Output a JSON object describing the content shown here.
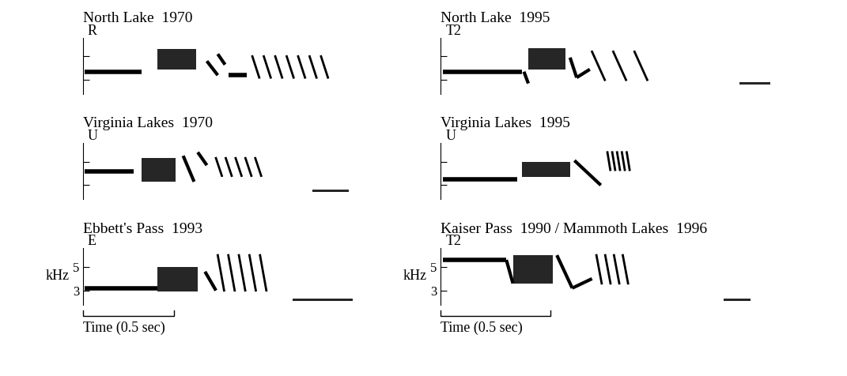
{
  "chart_data": [
    {
      "type": "spectrogram",
      "title": "North Lake  1970",
      "label": "R",
      "color": "#000000",
      "xlim": [
        0,
        1.6
      ],
      "ylim": [
        1.8,
        6.6
      ],
      "yticks": [
        3,
        5
      ],
      "tick_labels": false,
      "notes": [
        {
          "type": "whistle",
          "t": [
            0.01,
            0.32
          ],
          "f": 3.7
        },
        {
          "type": "buzz",
          "t": [
            0.41,
            0.62
          ],
          "f": [
            3.9,
            5.6
          ]
        },
        {
          "type": "sweep",
          "t": [
            0.68,
            0.74
          ],
          "f": [
            4.6,
            3.4
          ]
        },
        {
          "type": "sweep",
          "t": [
            0.74,
            0.78
          ],
          "f": [
            5.2,
            4.3
          ]
        },
        {
          "type": "whistle",
          "t": [
            0.8,
            0.9
          ],
          "f": 3.4
        },
        {
          "type": "trill",
          "t": [
            0.93,
            1.37
          ],
          "f": [
            5.0,
            3.2
          ],
          "n": 7
        }
      ]
    },
    {
      "type": "spectrogram",
      "title": "North Lake  1995",
      "label": "T2",
      "color": "#000000",
      "xlim": [
        0,
        1.6
      ],
      "ylim": [
        1.8,
        6.6
      ],
      "yticks": [
        3,
        5
      ],
      "tick_labels": false,
      "notes": [
        {
          "type": "whistle",
          "t": [
            0.01,
            0.37
          ],
          "f": 3.7
        },
        {
          "type": "sweep",
          "t": [
            0.38,
            0.4
          ],
          "f": [
            3.7,
            2.7
          ]
        },
        {
          "type": "buzz",
          "t": [
            0.4,
            0.57
          ],
          "f": [
            3.9,
            5.7
          ]
        },
        {
          "type": "sweep",
          "t": [
            0.59,
            0.62
          ],
          "f": [
            4.9,
            3.2
          ]
        },
        {
          "type": "sweep",
          "t": [
            0.62,
            0.68
          ],
          "f": [
            3.2,
            3.9
          ]
        },
        {
          "type": "trill",
          "t": [
            0.69,
            0.98
          ],
          "f": [
            5.4,
            3.0
          ],
          "n": 3
        },
        {
          "type": "buzz",
          "t": [
            1.36,
            1.5
          ],
          "f": [
            2.6,
            2.8
          ]
        }
      ]
    },
    {
      "type": "spectrogram",
      "title": "Virginia Lakes  1970",
      "label": "U",
      "color": "#000000",
      "xlim": [
        0,
        1.6
      ],
      "ylim": [
        1.8,
        6.6
      ],
      "yticks": [
        3,
        5
      ],
      "tick_labels": false,
      "notes": [
        {
          "type": "whistle",
          "t": [
            0.01,
            0.28
          ],
          "f": 4.2
        },
        {
          "type": "buzz",
          "t": [
            0.32,
            0.51
          ],
          "f": [
            3.3,
            5.3
          ]
        },
        {
          "type": "sweep",
          "t": [
            0.55,
            0.61
          ],
          "f": [
            5.5,
            3.3
          ]
        },
        {
          "type": "sweep",
          "t": [
            0.63,
            0.68
          ],
          "f": [
            5.8,
            4.7
          ]
        },
        {
          "type": "trill",
          "t": [
            0.73,
            1.0
          ],
          "f": [
            5.3,
            3.8
          ],
          "n": 5
        },
        {
          "type": "buzz",
          "t": [
            1.26,
            1.46
          ],
          "f": [
            2.4,
            2.6
          ]
        }
      ]
    },
    {
      "type": "spectrogram",
      "title": "Virginia Lakes  1995",
      "label": "U",
      "color": "#000000",
      "xlim": [
        0,
        1.6
      ],
      "ylim": [
        1.8,
        6.6
      ],
      "yticks": [
        3,
        5
      ],
      "tick_labels": false,
      "notes": [
        {
          "type": "whistle",
          "t": [
            0.01,
            0.35
          ],
          "f": 3.5
        },
        {
          "type": "buzz",
          "t": [
            0.37,
            0.59
          ],
          "f": [
            3.7,
            5.0
          ]
        },
        {
          "type": "sweep",
          "t": [
            0.61,
            0.73
          ],
          "f": [
            5.1,
            3.0
          ]
        },
        {
          "type": "trill",
          "t": [
            0.76,
            0.87
          ],
          "f": [
            5.8,
            4.3
          ],
          "n": 5
        }
      ]
    },
    {
      "type": "spectrogram",
      "title": "Ebbett's Pass  1993",
      "label": "E",
      "color": "#000000",
      "xlim": [
        0,
        1.6
      ],
      "ylim": [
        1.8,
        6.6
      ],
      "yticks": [
        3,
        5
      ],
      "tick_labels": "y",
      "ylabel": "kHz",
      "scale_bar": {
        "value": 0.5,
        "label": "Time (0.5 sec)"
      },
      "notes": [
        {
          "type": "whistle",
          "t": [
            0.01,
            0.41
          ],
          "f": 3.2
        },
        {
          "type": "buzz",
          "t": [
            0.41,
            0.63
          ],
          "f": [
            2.9,
            5.0
          ]
        },
        {
          "type": "sweep",
          "t": [
            0.67,
            0.73
          ],
          "f": [
            4.6,
            3.0
          ]
        },
        {
          "type": "trill",
          "t": [
            0.74,
            1.03
          ],
          "f": [
            6.0,
            3.0
          ],
          "n": 5
        },
        {
          "type": "buzz",
          "t": [
            1.15,
            1.48
          ],
          "f": [
            2.1,
            2.3
          ]
        }
      ]
    },
    {
      "type": "spectrogram",
      "title": "Kaiser Pass  1990 / Mammoth Lakes  1996",
      "label": "T2",
      "color": "#000000",
      "xlim": [
        0,
        1.6
      ],
      "ylim": [
        1.8,
        6.6
      ],
      "yticks": [
        3,
        5
      ],
      "tick_labels": "y",
      "ylabel": "kHz",
      "scale_bar": {
        "value": 0.5,
        "label": "Time (0.5 sec)"
      },
      "notes": [
        {
          "type": "whistle",
          "t": [
            0.01,
            0.3
          ],
          "f": 5.6
        },
        {
          "type": "sweep",
          "t": [
            0.3,
            0.33
          ],
          "f": [
            5.6,
            3.6
          ]
        },
        {
          "type": "buzz",
          "t": [
            0.33,
            0.51
          ],
          "f": [
            3.6,
            6.0
          ]
        },
        {
          "type": "sweep",
          "t": [
            0.53,
            0.6
          ],
          "f": [
            6.0,
            3.2
          ]
        },
        {
          "type": "sweep",
          "t": [
            0.6,
            0.69
          ],
          "f": [
            3.2,
            4.0
          ]
        },
        {
          "type": "trill",
          "t": [
            0.71,
            0.87
          ],
          "f": [
            6.0,
            3.6
          ],
          "n": 4
        },
        {
          "type": "buzz",
          "t": [
            1.29,
            1.41
          ],
          "f": [
            2.1,
            2.3
          ]
        }
      ]
    }
  ]
}
